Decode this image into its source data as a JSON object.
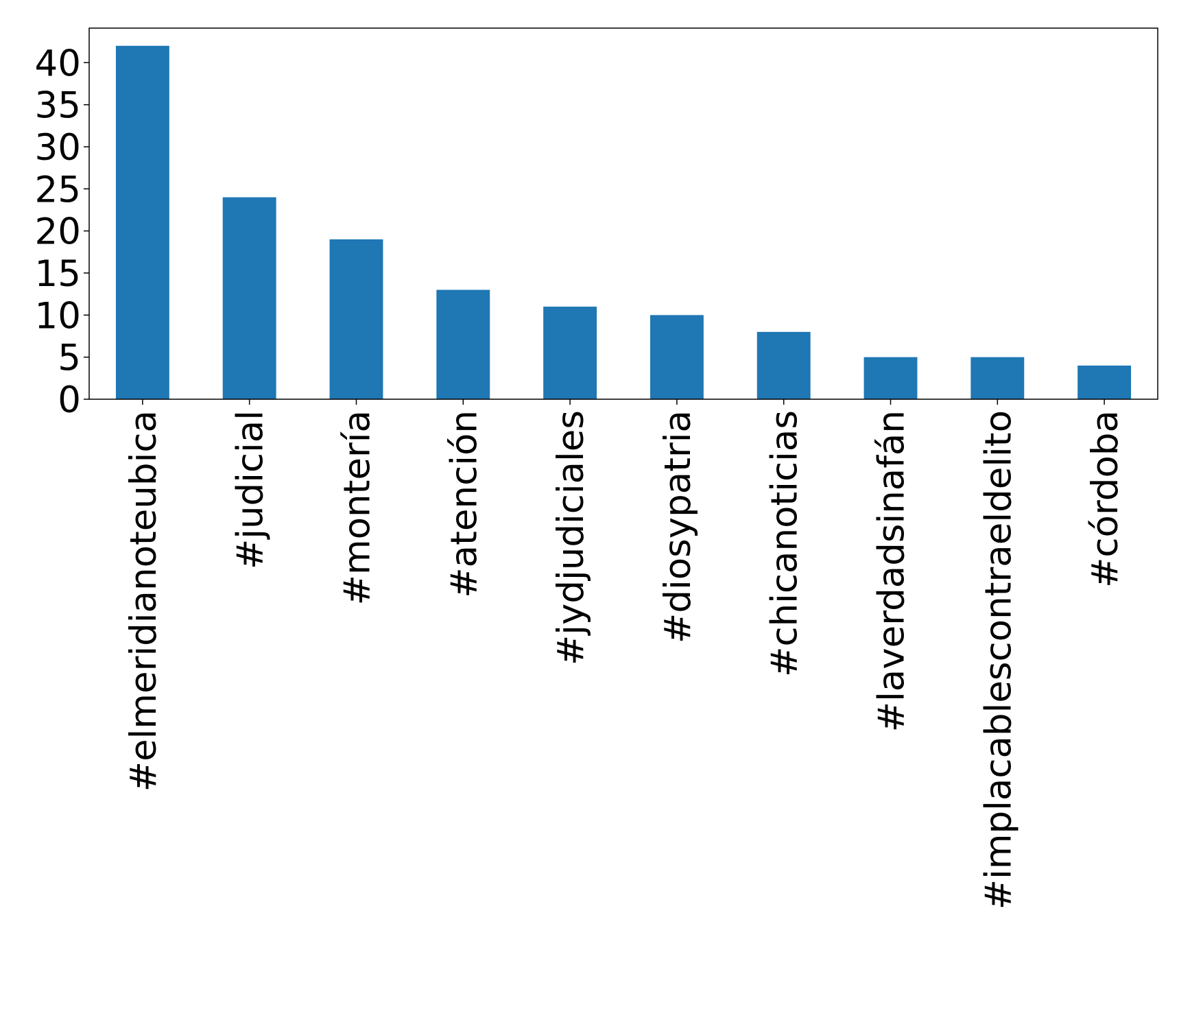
{
  "chart_data": {
    "type": "bar",
    "categories": [
      "#elmeridianoteubica",
      "#judicial",
      "#montería",
      "#atención",
      "#jydjudiciales",
      "#diosypatria",
      "#chicanoticias",
      "#laverdadsinafán",
      "#implacablescontraeldelito",
      "#córdoba"
    ],
    "values": [
      42,
      24,
      19,
      13,
      11,
      10,
      8,
      5,
      5,
      4
    ],
    "color": "#1f77b4",
    "ylim": [
      0,
      44.1
    ],
    "yticks": [
      0,
      5,
      10,
      15,
      20,
      25,
      30,
      35,
      40
    ],
    "grid": false
  }
}
